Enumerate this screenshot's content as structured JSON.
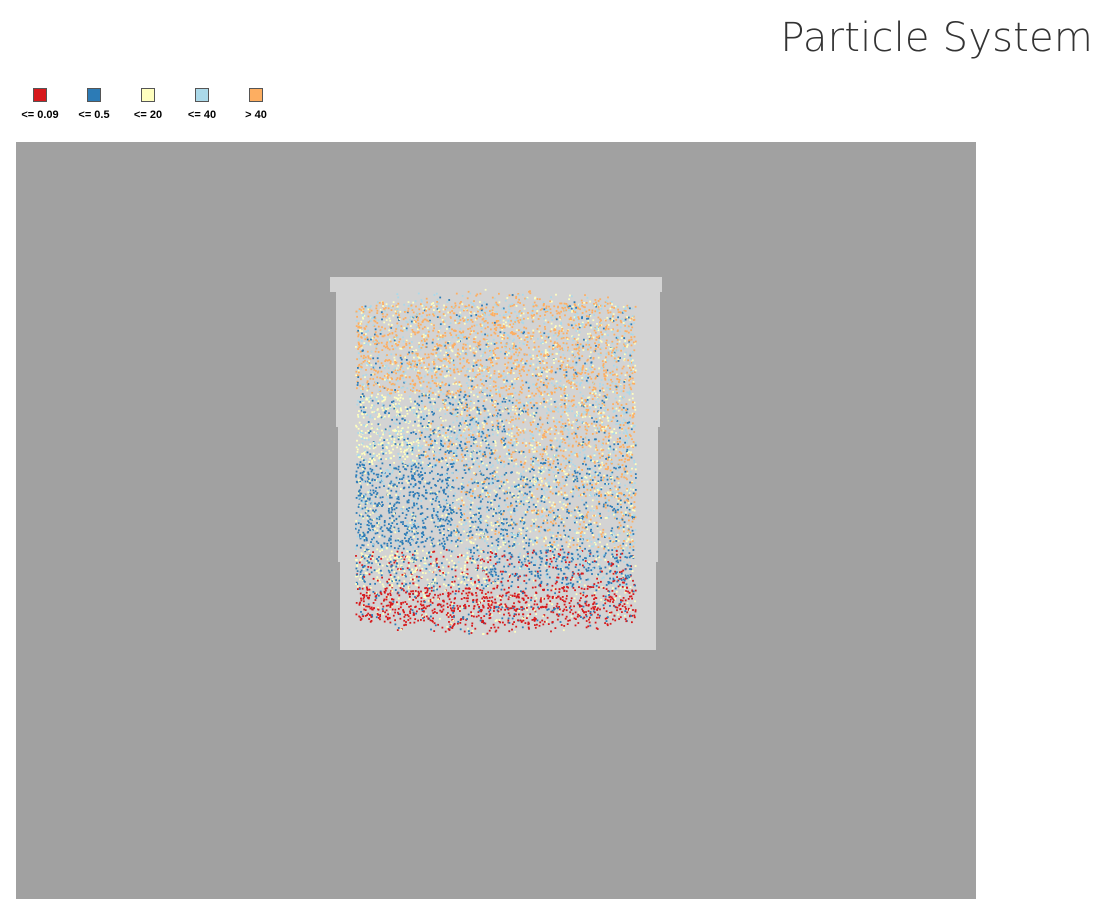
{
  "page": {
    "title": "Particle System"
  },
  "legend": {
    "items": [
      {
        "label": "<= 0.09",
        "color": "#d7191c"
      },
      {
        "label": "<= 0.5",
        "color": "#2c7bb6"
      },
      {
        "label": "<= 20",
        "color": "#ffffbf"
      },
      {
        "label": "<= 40",
        "color": "#abd9e9"
      },
      {
        "label": "> 40",
        "color": "#fdae61"
      }
    ]
  },
  "viewport": {
    "background": "#a1a1a1",
    "container_color": "#d3d3d3"
  }
}
